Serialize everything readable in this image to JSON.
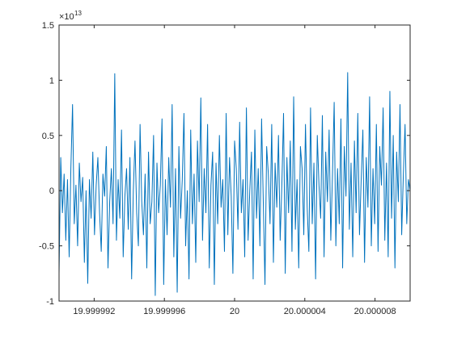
{
  "chart_data": {
    "type": "line",
    "title": "",
    "xlabel": "",
    "ylabel": "",
    "xlim": [
      19.99999,
      20.00001
    ],
    "ylim": [
      -1,
      1.5
    ],
    "y_exponent_base": "×10",
    "y_exponent_power": "13",
    "x_ticks": [
      {
        "value": 19.999992,
        "label": "19.999992"
      },
      {
        "value": 19.999996,
        "label": "19.999996"
      },
      {
        "value": 20.0,
        "label": "20"
      },
      {
        "value": 20.000004,
        "label": "20.000004"
      },
      {
        "value": 20.000008,
        "label": "20.000008"
      }
    ],
    "y_ticks": [
      {
        "value": -1,
        "label": "-1"
      },
      {
        "value": -0.5,
        "label": "-0.5"
      },
      {
        "value": 0,
        "label": "0"
      },
      {
        "value": 0.5,
        "label": "0.5"
      },
      {
        "value": 1,
        "label": "1"
      },
      {
        "value": 1.5,
        "label": "1.5"
      }
    ],
    "grid": false,
    "box": true,
    "series": [
      {
        "color": "#0072bd",
        "x_start": 19.99999,
        "x_end": 20.00001,
        "values": [
          -0.75,
          0.3,
          -0.2,
          0.15,
          -0.45,
          0.1,
          -0.6,
          0.2,
          0.78,
          -0.3,
          0.05,
          -0.5,
          0.25,
          -0.1,
          0.12,
          -0.65,
          0.0,
          -0.84,
          0.1,
          -0.25,
          0.35,
          -0.4,
          0.05,
          0.3,
          -0.2,
          -0.55,
          0.15,
          -0.05,
          0.4,
          -0.7,
          -0.1,
          0.2,
          -0.3,
          1.06,
          -0.45,
          0.1,
          -0.25,
          0.55,
          -0.6,
          -0.05,
          0.2,
          -0.35,
          0.3,
          -0.8,
          0.0,
          0.45,
          -0.2,
          -0.5,
          0.6,
          -0.1,
          -0.4,
          0.15,
          -0.7,
          0.35,
          -0.3,
          -0.1,
          0.5,
          -0.95,
          0.25,
          -0.2,
          0.05,
          0.65,
          -0.85,
          0.1,
          -0.4,
          0.3,
          -0.15,
          0.78,
          -0.6,
          0.2,
          -0.92,
          0.4,
          -0.25,
          0.1,
          0.7,
          -0.5,
          0.0,
          -0.8,
          0.55,
          -0.3,
          0.15,
          -0.65,
          0.45,
          -0.1,
          0.84,
          -0.45,
          0.2,
          -0.2,
          0.6,
          -0.7,
          0.05,
          0.35,
          -0.85,
          0.25,
          -0.3,
          0.5,
          -0.15,
          0.1,
          -0.55,
          0.7,
          -0.4,
          0.3,
          -0.05,
          -0.75,
          0.45,
          0.2,
          -0.35,
          0.62,
          -0.2,
          0.1,
          -0.6,
          0.75,
          -0.45,
          0.0,
          0.35,
          -0.8,
          0.55,
          -0.25,
          0.2,
          -0.5,
          0.65,
          -0.1,
          -0.85,
          0.4,
          0.15,
          -0.3,
          0.6,
          -0.65,
          0.25,
          -0.15,
          0.5,
          -0.45,
          0.05,
          0.7,
          -0.75,
          0.3,
          -0.2,
          0.45,
          -0.55,
          0.85,
          -0.35,
          0.1,
          -0.7,
          0.4,
          0.2,
          -0.4,
          0.6,
          -0.15,
          -0.55,
          0.75,
          -0.3,
          0.25,
          -0.8,
          0.5,
          0.05,
          -0.25,
          0.68,
          -0.6,
          0.35,
          -0.1,
          0.55,
          -0.45,
          0.15,
          0.8,
          -0.5,
          0.2,
          -0.3,
          0.65,
          -0.7,
          0.4,
          -0.05,
          1.07,
          -0.35,
          0.25,
          -0.6,
          0.45,
          -0.2,
          0.7,
          -0.4,
          0.1,
          0.55,
          -0.65,
          0.3,
          -0.15,
          0.85,
          -0.5,
          0.2,
          -0.3,
          0.6,
          -0.55,
          0.4,
          0.05,
          0.75,
          -0.45,
          0.25,
          -0.6,
          0.9,
          -0.25,
          0.5,
          -0.7,
          0.35,
          -0.1,
          0.78,
          -0.4,
          0.15,
          0.6,
          -0.3,
          0.1,
          0.0
        ]
      }
    ]
  }
}
